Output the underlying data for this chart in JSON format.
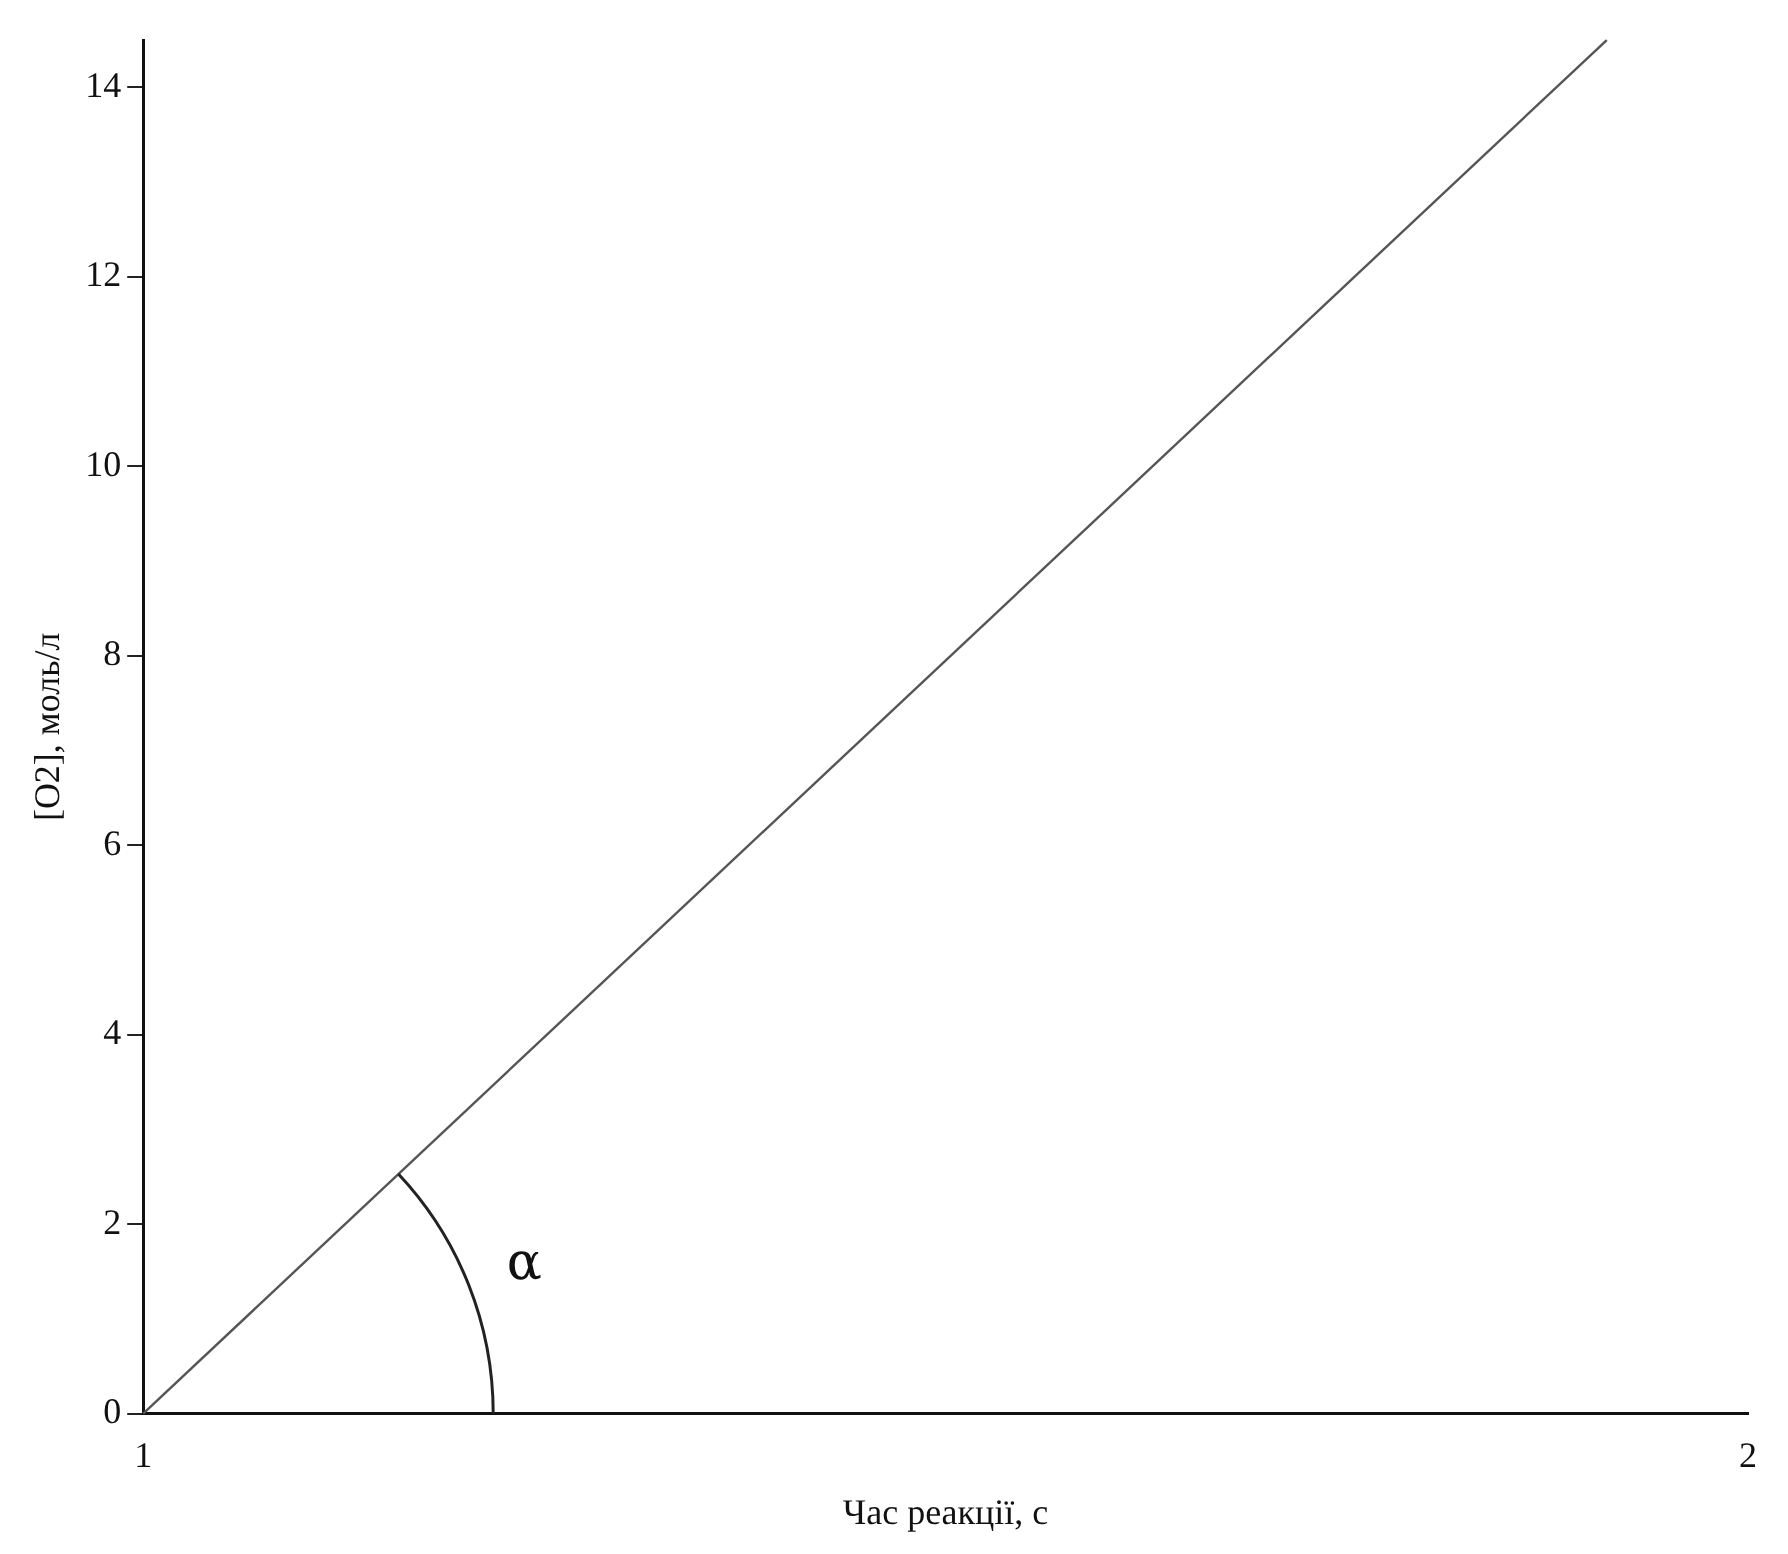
{
  "chart_data": {
    "type": "line",
    "xlabel": "Час реакції, с",
    "ylabel": "[O2], моль/л",
    "x": [
      1,
      1.912
    ],
    "series": [
      {
        "color": "#555555",
        "values": [
          0,
          14.5
        ]
      }
    ],
    "xlim": [
      1,
      2
    ],
    "xticks": [
      1,
      2
    ],
    "ylim": [
      0,
      14.5
    ],
    "yticks": [
      0,
      2,
      4,
      6,
      8,
      10,
      12,
      14
    ],
    "grid": false,
    "legend": false,
    "marker": "none",
    "line_style": "solid",
    "annotations": [
      "α"
    ]
  }
}
